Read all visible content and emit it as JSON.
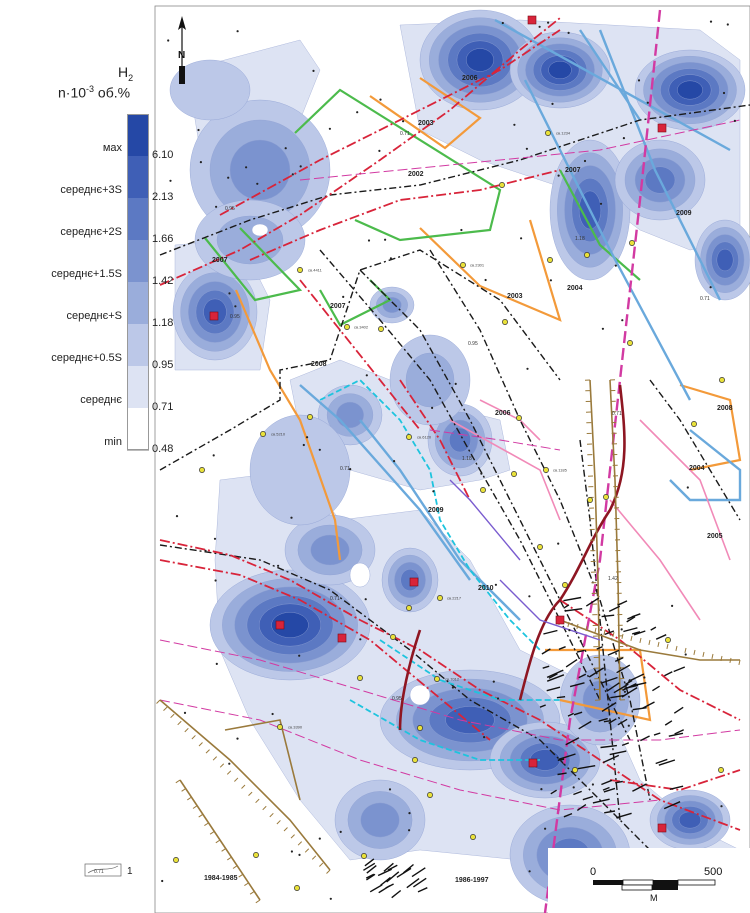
{
  "legend": {
    "title_element": "H",
    "title_subscript": "2",
    "unit_prefix": "n·10",
    "unit_exponent": "-3",
    "unit_suffix": " об.%",
    "classes": [
      {
        "label": "мах",
        "value": "6.10",
        "color": "#2548a6"
      },
      {
        "label": "середнє+3S",
        "value": "2.13",
        "color": "#3f5fb6"
      },
      {
        "label": "середнє+2S",
        "value": "1.66",
        "color": "#5c79c3"
      },
      {
        "label": "середнє+1.5S",
        "value": "1.42",
        "color": "#7b93cf"
      },
      {
        "label": "середнє+S",
        "value": "1.18",
        "color": "#9aaddb"
      },
      {
        "label": "середнє+0.5S",
        "value": "0.95",
        "color": "#bcc8e8"
      },
      {
        "label": "середнє",
        "value": "0.71",
        "color": "#dde3f3"
      },
      {
        "label": "min",
        "value": "0.48",
        "color": "#ffffff"
      }
    ]
  },
  "north_label": "N",
  "scale_bar": {
    "start": "0",
    "end": "500",
    "unit": "M"
  },
  "key_item": {
    "sample": "0.71",
    "number": "1"
  },
  "survey_years": [
    "2006",
    "2003",
    "2002",
    "2007",
    "2009",
    "2007",
    "2007",
    "2004",
    "2003",
    "2008",
    "2006",
    "2008",
    "2004",
    "2005",
    "2009",
    "2010",
    "1984-1985",
    "1986-1997"
  ],
  "contour_labels": [
    "0.71",
    "0.95",
    "1.18",
    "0.71",
    "0.95",
    "0.71",
    "1.42",
    "0.71",
    "0.95",
    "0.71",
    "0.95",
    "1.18"
  ],
  "well_labels": [
    "св.1234",
    "св.2301",
    "св.4411",
    "св.3402",
    "св.5210",
    "св.6120",
    "св.1185",
    "св.2217",
    "св.7012",
    "св.3390"
  ],
  "colors": {
    "fault_black": "#1a1a1a",
    "fault_red": "#d8243a",
    "magenta_dash": "#d23aa2",
    "orange": "#f39a3a",
    "green": "#4cbb4c",
    "light_blue": "#6aa9dc",
    "cyan": "#1ec4de",
    "dark_red": "#8e1622",
    "olive": "#9a7a3c",
    "pink": "#f18ab8",
    "purple": "#7a5ccf"
  }
}
